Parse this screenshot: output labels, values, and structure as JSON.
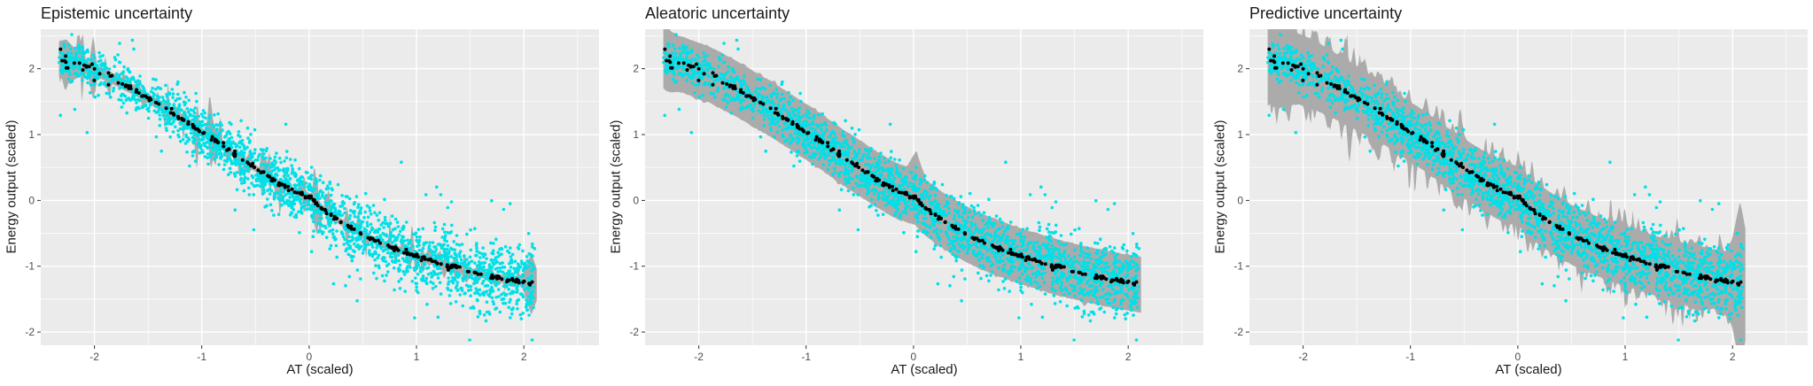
{
  "styles": {
    "panel_bg": "#EBEBEB",
    "grid_major": "#FFFFFF",
    "grid_minor": "#FFFFFF",
    "ribbon": "#ABABAB",
    "scatter": "#00E0E8",
    "mean_dot": "#000000",
    "tick_text": "#4D4D4D",
    "tick_mark": "#333333",
    "title_color": "#1A1A1A"
  },
  "axes": {
    "x_domain": [
      -2.5,
      2.7
    ],
    "y_domain": [
      -2.2,
      2.6
    ],
    "x_ticks": [
      -2,
      -1,
      0,
      1,
      2
    ],
    "y_ticks": [
      2,
      1,
      0,
      -1,
      -2
    ],
    "x_minor": [
      -2.5,
      -1.5,
      -0.5,
      0.5,
      1.5,
      2.5
    ],
    "y_minor": [
      2.5,
      1.5,
      0.5,
      -0.5,
      -1.5
    ],
    "grid": true,
    "legend": "none"
  },
  "shared": {
    "curve_points": [
      [
        -2.33,
        2.17
      ],
      [
        -2.25,
        2.1
      ],
      [
        -2.15,
        2.06
      ],
      [
        -2.05,
        2.0
      ],
      [
        -1.9,
        1.91
      ],
      [
        -1.75,
        1.78
      ],
      [
        -1.6,
        1.65
      ],
      [
        -1.45,
        1.5
      ],
      [
        -1.3,
        1.36
      ],
      [
        -1.15,
        1.2
      ],
      [
        -1.0,
        1.04
      ],
      [
        -0.85,
        0.88
      ],
      [
        -0.7,
        0.7
      ],
      [
        -0.55,
        0.54
      ],
      [
        -0.4,
        0.38
      ],
      [
        -0.3,
        0.28
      ],
      [
        -0.2,
        0.18
      ],
      [
        -0.12,
        0.12
      ],
      [
        -0.05,
        0.09
      ],
      [
        0.02,
        0.05
      ],
      [
        0.06,
        -0.04
      ],
      [
        0.12,
        -0.12
      ],
      [
        0.2,
        -0.22
      ],
      [
        0.3,
        -0.33
      ],
      [
        0.4,
        -0.43
      ],
      [
        0.5,
        -0.52
      ],
      [
        0.6,
        -0.6
      ],
      [
        0.7,
        -0.67
      ],
      [
        0.8,
        -0.73
      ],
      [
        0.9,
        -0.79
      ],
      [
        1.0,
        -0.85
      ],
      [
        1.15,
        -0.92
      ],
      [
        1.3,
        -1.0
      ],
      [
        1.45,
        -1.06
      ],
      [
        1.6,
        -1.12
      ],
      [
        1.75,
        -1.17
      ],
      [
        1.9,
        -1.22
      ],
      [
        2.0,
        -1.25
      ],
      [
        2.12,
        -1.28
      ]
    ],
    "scatter_spec": {
      "seed": 42,
      "n": 2300,
      "x_min": -2.33,
      "x_max": 2.1,
      "left_thin_below": -1.2,
      "left_keep": 0.72,
      "sd_min": 0.15,
      "sd_max": 0.28,
      "outlier_rate": 0.035,
      "outlier_down_bias": 0.7,
      "radius": 1.8
    },
    "mean_spec": {
      "seed": 7,
      "n": 270,
      "x_min": -2.33,
      "x_max": 2.1,
      "jitter_sd": 0.018,
      "loose_below": -1.85,
      "loose_sd": 0.065,
      "loose_keep": 0.65,
      "radius": 2.0
    }
  },
  "chart_data": [
    {
      "type": "scatter",
      "title": "Epistemic uncertainty",
      "xlabel": "AT (scaled)",
      "ylabel": "Energy output (scaled)",
      "series": [
        {
          "name": "observations",
          "geom": "point",
          "color": "#00E0E8"
        },
        {
          "name": "mean prediction",
          "geom": "point",
          "color": "#000000"
        },
        {
          "name": "epistemic uncertainty band",
          "geom": "ribbon",
          "color": "#ABABAB"
        }
      ],
      "ribbon": {
        "seed": 11,
        "base_half": 0.05,
        "left_widen": {
          "from": -0.8,
          "rate": 0.032
        },
        "edge_jitter": 0.012,
        "spikes": [
          {
            "x0": -2.33,
            "x1": 1.05,
            "count": 95,
            "max": 0.4
          },
          {
            "x0": 1.05,
            "x1": 2.05,
            "count": 42,
            "max": 0.16
          }
        ],
        "bulges": [
          {
            "cx": -2.26,
            "w": 0.18,
            "half": 0.24
          },
          {
            "cx": 2.07,
            "w": 0.09,
            "half": 0.42
          }
        ]
      }
    },
    {
      "type": "scatter",
      "title": "Aleatoric uncertainty",
      "xlabel": "AT (scaled)",
      "ylabel": "Energy output (scaled)",
      "series": [
        {
          "name": "observations",
          "geom": "point",
          "color": "#00E0E8"
        },
        {
          "name": "mean prediction",
          "geom": "point",
          "color": "#000000"
        },
        {
          "name": "aleatoric uncertainty band",
          "geom": "ribbon",
          "color": "#ABABAB"
        }
      ],
      "ribbon": {
        "seed": 23,
        "base_half": 0.42,
        "edge_jitter": 0.02,
        "spikes": [
          {
            "x0": -2.33,
            "x1": 2.05,
            "count": 30,
            "max": 0.05
          }
        ],
        "bulges": [
          {
            "cx": 0.03,
            "w": 0.09,
            "half": 0.3,
            "side": "up"
          },
          {
            "cx": -2.3,
            "w": 0.12,
            "half": 0.06
          }
        ]
      }
    },
    {
      "type": "scatter",
      "title": "Predictive uncertainty",
      "xlabel": "AT (scaled)",
      "ylabel": "Energy output (scaled)",
      "series": [
        {
          "name": "observations",
          "geom": "point",
          "color": "#00E0E8"
        },
        {
          "name": "mean prediction",
          "geom": "point",
          "color": "#000000"
        },
        {
          "name": "predictive uncertainty band",
          "geom": "ribbon",
          "color": "#ABABAB"
        }
      ],
      "ribbon": {
        "seed": 37,
        "base_half": 0.45,
        "left_widen": {
          "from": -1.2,
          "rate": 0.1
        },
        "edge_jitter": 0.022,
        "spikes": [
          {
            "x0": -2.33,
            "x1": 1.1,
            "count": 130,
            "max": 0.3
          },
          {
            "x0": 1.1,
            "x1": 2.05,
            "count": 50,
            "max": 0.2
          }
        ],
        "bulges": [
          {
            "cx": 2.07,
            "w": 0.1,
            "half": 0.8
          },
          {
            "cx": -2.25,
            "w": 0.2,
            "half": 0.15
          }
        ]
      }
    }
  ]
}
